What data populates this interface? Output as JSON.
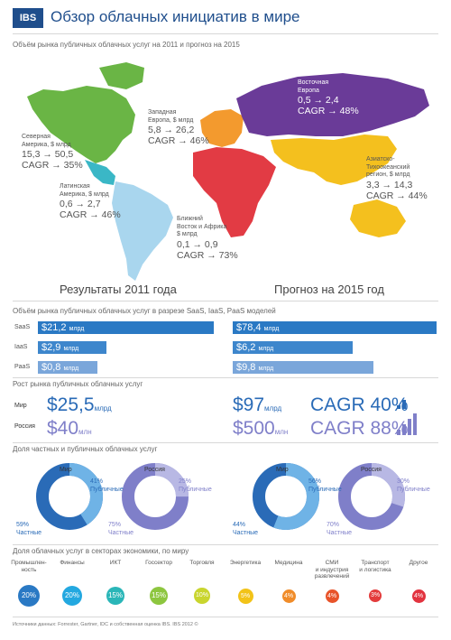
{
  "header": {
    "logo": "IBS",
    "title": "Обзор облачных инициатив в мире"
  },
  "map": {
    "subtitle": "Объём рынка публичных облачных услуг на 2011 и прогноз на 2015",
    "left_label": "Результаты 2011 года",
    "right_label": "Прогноз на 2015 год",
    "regions": {
      "na": {
        "l1": "Северная",
        "l2": "Америка, $ млрд",
        "val": "15,3 → 50,5",
        "cagr": "CAGR → 35%"
      },
      "la": {
        "l1": "Латинская",
        "l2": "Америка, $ млрд",
        "val": "0,6 → 2,7",
        "cagr": "CAGR → 46%"
      },
      "we": {
        "l1": "Западная",
        "l2": "Европа, $ млрд",
        "val": "5,8 → 26,2",
        "cagr": "CAGR → 46%"
      },
      "ee": {
        "l1": "Восточная",
        "l2": "Европа",
        "val": "0,5 → 2,4",
        "cagr": "CAGR → 48%"
      },
      "me": {
        "l1": "Ближний",
        "l2": "Восток и Африка",
        "l3": "$ млрд",
        "val": "0,1 → 0,9",
        "cagr": "CAGR → 73%"
      },
      "ap": {
        "l1": "Азиатско-",
        "l2": "Тихоокеанский",
        "l3": "регион, $ млрд",
        "val": "3,3 → 14,3",
        "cagr": "CAGR → 44%"
      }
    }
  },
  "models": {
    "subtitle": "Объём рынка публичных облачных услуг в разрезе SaaS, IaaS, PaaS моделей",
    "rows": [
      {
        "label": "SaaS",
        "v2011": "$21,2",
        "v2015": "$78,4",
        "unit": "млрд"
      },
      {
        "label": "IaaS",
        "v2011": "$2,9",
        "v2015": "$6,2",
        "unit": "млрд"
      },
      {
        "label": "PaaS",
        "v2011": "$0,8",
        "v2015": "$9,8",
        "unit": "млрд"
      }
    ],
    "fraction_2011": [
      1.0,
      0.39,
      0.34
    ],
    "fraction_2015": [
      1.0,
      0.59,
      0.69
    ]
  },
  "growth": {
    "subtitle": "Рост рынка публичных облачных услуг",
    "world_label": "Мир",
    "russia_label": "Россия",
    "world_2011": "$25,5",
    "world_2011_unit": "млрд",
    "russia_2011": "$40",
    "russia_2011_unit": "млн",
    "world_2015": "$97",
    "world_2015_unit": "млрд",
    "russia_2015": "$500",
    "russia_2015_unit": "млн",
    "world_cagr": "CAGR 40%",
    "russia_cagr": "CAGR 88%"
  },
  "share": {
    "subtitle": "Доля частных и публичных облачных услуг",
    "world_label": "Мир",
    "russia_label": "Россия",
    "public_label": "Публичные",
    "private_label": "Частные",
    "y2011": {
      "world_public": "41%",
      "world_private": "59%",
      "russia_public": "25%",
      "russia_private": "75%"
    },
    "y2015": {
      "world_public": "56%",
      "world_private": "44%",
      "russia_public": "30%",
      "russia_private": "70%"
    },
    "fractions": {
      "y2011_world": 0.41,
      "y2011_russia": 0.25,
      "y2015_world": 0.56,
      "y2015_russia": 0.3
    }
  },
  "sectors": {
    "subtitle": "Доля облачных услуг в секторах экономики, по миру",
    "items": [
      {
        "name": "Промышлен-\nность",
        "pct": "20%",
        "color": "#2a79c4"
      },
      {
        "name": "Финансы",
        "pct": "20%",
        "color": "#23a8e0"
      },
      {
        "name": "ИКТ",
        "pct": "15%",
        "color": "#2ab6b8"
      },
      {
        "name": "Госсектор",
        "pct": "15%",
        "color": "#8dc63f"
      },
      {
        "name": "Торговля",
        "pct": "10%",
        "color": "#c9d52e"
      },
      {
        "name": "Энергетика",
        "pct": "5%",
        "color": "#f2c318"
      },
      {
        "name": "Медицина",
        "pct": "4%",
        "color": "#f08c2a"
      },
      {
        "name": "СМИ\nи индустрия\nразвлечений",
        "pct": "4%",
        "color": "#e8542a"
      },
      {
        "name": "Транспорт\nи логистика",
        "pct": "3%",
        "color": "#e33c3c"
      },
      {
        "name": "Другое",
        "pct": "4%",
        "color": "#e2333f"
      }
    ]
  },
  "footer": {
    "sources": "Источники данных: Forrester, Gartner, IDC и собственная оценка IBS. IBS 2012 ©"
  }
}
